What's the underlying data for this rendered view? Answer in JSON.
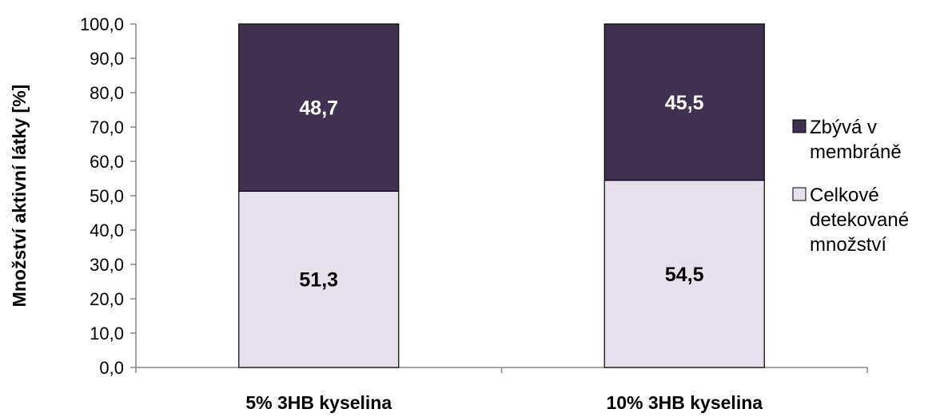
{
  "chart_data": {
    "type": "bar",
    "stacked": true,
    "categories": [
      "5% 3HB kyselina",
      "10% 3HB kyselina"
    ],
    "series": [
      {
        "name": "Celkové detekované množství",
        "values": [
          51.3,
          54.5
        ],
        "labels": [
          "51,3",
          "54,5"
        ],
        "color": "#e6e0ec",
        "label_color": "#000000"
      },
      {
        "name": "Zbývá v membráně",
        "values": [
          48.7,
          45.5
        ],
        "labels": [
          "48,7",
          "45,5"
        ],
        "color": "#403152",
        "label_color": "#ffffff"
      }
    ],
    "legend_order": [
      1,
      0
    ],
    "legend_lines": [
      [
        "Zbývá v",
        "membráně"
      ],
      [
        "Celkové",
        "detekované",
        "množství"
      ]
    ],
    "ylabel": "Množství aktivní látky [%]",
    "ylim": [
      0,
      100
    ],
    "yticks": [
      "0,0",
      "10,0",
      "20,0",
      "30,0",
      "40,0",
      "50,0",
      "60,0",
      "70,0",
      "80,0",
      "90,0",
      "100,0"
    ],
    "grid": false,
    "legend_position": "right"
  }
}
